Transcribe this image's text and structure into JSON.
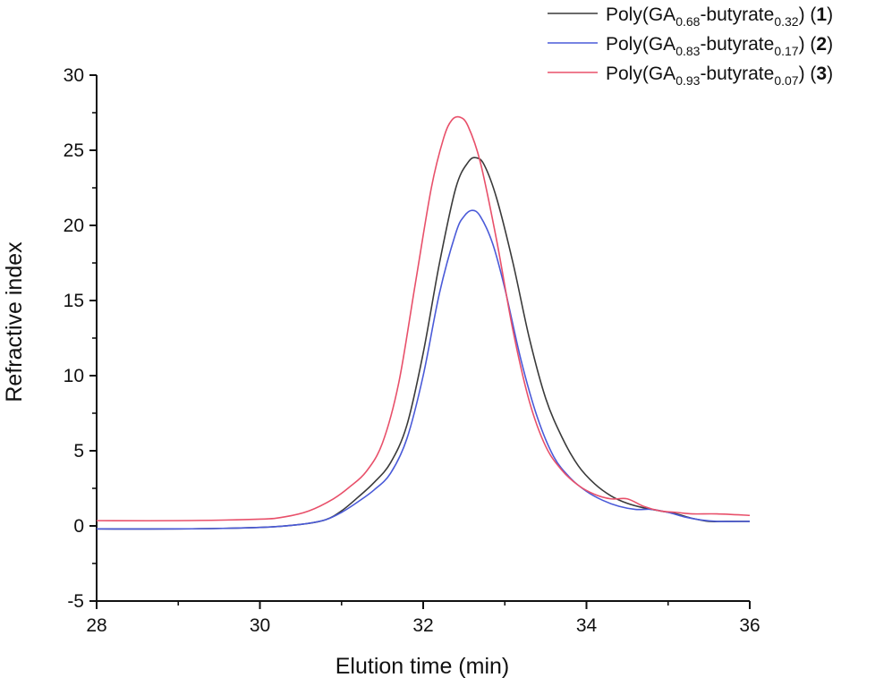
{
  "chart_data": {
    "type": "line",
    "xlabel": "Elution time (min)",
    "ylabel": "Refractive index",
    "xlim": [
      28,
      36
    ],
    "ylim": [
      -5,
      30
    ],
    "xticks": [
      28,
      30,
      32,
      34,
      36
    ],
    "yticks": [
      -5,
      0,
      5,
      10,
      15,
      20,
      25,
      30
    ],
    "grid": false,
    "legend_position": "top-right",
    "series": [
      {
        "name": "Poly(GA0.68-butyrate0.32) (1)",
        "legend": {
          "base": "Poly(GA",
          "sub1": "0.68",
          "mid": "-butyrate",
          "sub2": "0.32",
          "tail": ") (",
          "num": "1",
          "close": ")"
        },
        "color": "#3a3a3a",
        "x": [
          28,
          29,
          30,
          30.5,
          30.8,
          31.0,
          31.2,
          31.4,
          31.6,
          31.8,
          32.0,
          32.2,
          32.4,
          32.55,
          32.65,
          32.75,
          32.9,
          33.1,
          33.3,
          33.5,
          33.7,
          33.9,
          34.1,
          34.3,
          34.5,
          34.7,
          34.9,
          35.1,
          35.3,
          35.5,
          35.7,
          36.0
        ],
        "y": [
          -0.2,
          -0.2,
          -0.1,
          0.1,
          0.4,
          1.0,
          1.9,
          2.9,
          4.2,
          6.7,
          11.5,
          17.5,
          22.5,
          24.2,
          24.5,
          24.0,
          21.8,
          17.5,
          12.5,
          8.5,
          5.9,
          4.0,
          2.8,
          2.0,
          1.5,
          1.2,
          1.0,
          0.8,
          0.5,
          0.3,
          0.3,
          0.3
        ]
      },
      {
        "name": "Poly(GA0.83-butyrate0.17) (2)",
        "legend": {
          "base": "Poly(GA",
          "sub1": "0.83",
          "mid": "-butyrate",
          "sub2": "0.17",
          "tail": ") (",
          "num": "2",
          "close": ")"
        },
        "color": "#4a5ad8",
        "x": [
          28,
          29,
          30,
          30.5,
          30.8,
          31.0,
          31.2,
          31.4,
          31.6,
          31.8,
          32.0,
          32.2,
          32.4,
          32.5,
          32.6,
          32.7,
          32.85,
          33.0,
          33.2,
          33.4,
          33.6,
          33.8,
          34.0,
          34.2,
          34.4,
          34.6,
          34.8,
          35.0,
          35.2,
          35.4,
          35.6,
          36.0
        ],
        "y": [
          -0.2,
          -0.2,
          -0.1,
          0.1,
          0.4,
          0.9,
          1.6,
          2.4,
          3.5,
          5.8,
          10.0,
          15.5,
          19.5,
          20.6,
          21.0,
          20.6,
          18.8,
          15.8,
          11.0,
          7.2,
          4.6,
          3.2,
          2.3,
          1.7,
          1.3,
          1.1,
          1.1,
          0.9,
          0.6,
          0.4,
          0.3,
          0.3
        ]
      },
      {
        "name": "Poly(GA0.93-butyrate0.07) (3)",
        "legend": {
          "base": "Poly(GA",
          "sub1": "0.93",
          "mid": "-butyrate",
          "sub2": "0.07",
          "tail": ") (",
          "num": "3",
          "close": ")"
        },
        "color": "#e8506a",
        "x": [
          28,
          29,
          30,
          30.3,
          30.6,
          30.9,
          31.1,
          31.3,
          31.5,
          31.7,
          31.9,
          32.1,
          32.25,
          32.35,
          32.45,
          32.55,
          32.7,
          32.9,
          33.1,
          33.3,
          33.5,
          33.7,
          33.9,
          34.1,
          34.3,
          34.5,
          34.7,
          34.9,
          35.1,
          35.3,
          35.6,
          36.0
        ],
        "y": [
          0.35,
          0.35,
          0.45,
          0.6,
          1.0,
          1.8,
          2.6,
          3.6,
          5.5,
          9.5,
          16.0,
          22.5,
          25.8,
          27.0,
          27.2,
          26.6,
          24.2,
          19.0,
          13.0,
          8.3,
          5.3,
          3.7,
          2.7,
          2.1,
          1.8,
          1.8,
          1.3,
          1.0,
          0.9,
          0.8,
          0.8,
          0.7
        ]
      }
    ]
  }
}
